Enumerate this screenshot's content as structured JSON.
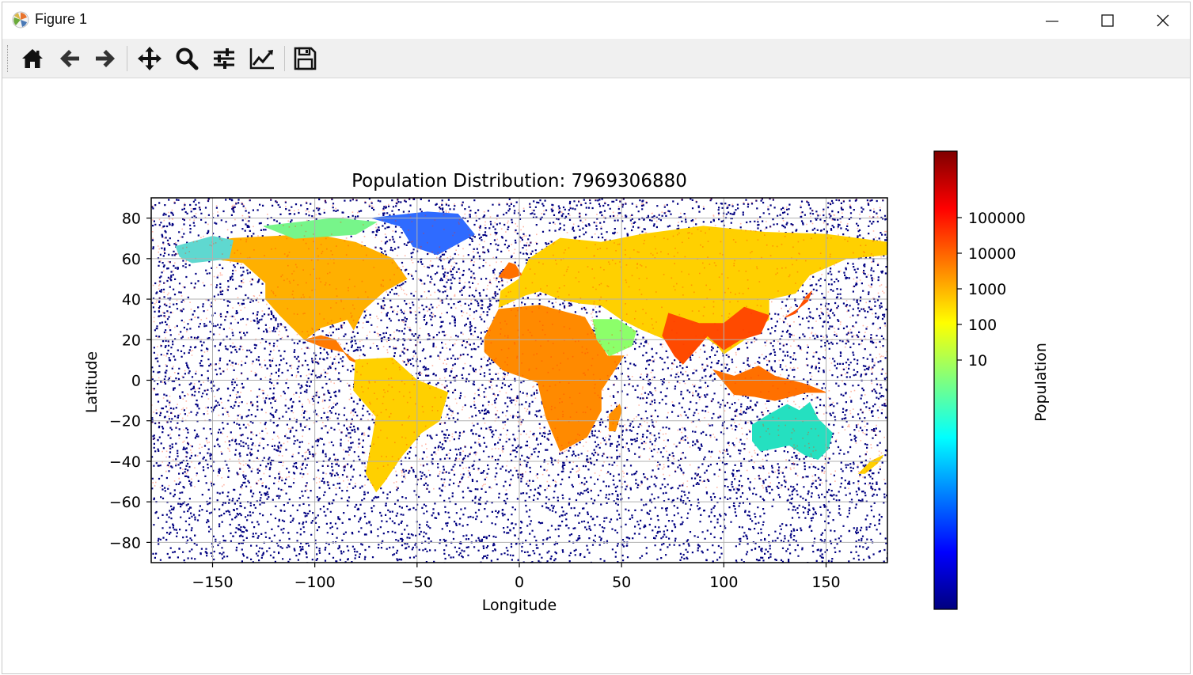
{
  "window": {
    "title": "Figure 1",
    "app_icon": "matplotlib-icon",
    "controls": [
      "minimize-icon",
      "maximize-icon",
      "close-icon"
    ]
  },
  "toolbar": {
    "buttons": [
      {
        "name": "home",
        "icon": "home-icon"
      },
      {
        "name": "back",
        "icon": "back-arrow-icon"
      },
      {
        "name": "forward",
        "icon": "forward-arrow-icon"
      },
      {
        "name": "pan",
        "icon": "move-icon"
      },
      {
        "name": "zoom",
        "icon": "zoom-icon"
      },
      {
        "name": "subplots",
        "icon": "sliders-icon"
      },
      {
        "name": "customize",
        "icon": "line-chart-icon"
      },
      {
        "name": "save",
        "icon": "save-icon"
      }
    ]
  },
  "chart_data": {
    "type": "heatmap",
    "title": "Population Distribution: 7969306880",
    "xlabel": "Longitude",
    "ylabel": "Latitude",
    "xlim": [
      -180,
      180
    ],
    "ylim": [
      -90,
      90
    ],
    "xticks": [
      -150,
      -100,
      -50,
      0,
      50,
      100,
      150
    ],
    "xtick_labels": [
      "−150",
      "−100",
      "−50",
      "0",
      "50",
      "100",
      "150"
    ],
    "yticks": [
      80,
      60,
      40,
      20,
      0,
      -20,
      -40,
      -60,
      -80
    ],
    "ytick_labels": [
      "80",
      "60",
      "40",
      "20",
      "0",
      "−20",
      "−40",
      "−60",
      "−80"
    ],
    "grid": true,
    "colormap": "jet",
    "colorbar": {
      "label": "Population",
      "scale": "log",
      "ticks": [
        100000,
        10000,
        1000,
        100,
        10
      ],
      "tick_labels": [
        "100000",
        "10000",
        "1000",
        "100",
        "10"
      ],
      "colors": [
        "#00007f",
        "#0000ff",
        "#007fff",
        "#00ffff",
        "#7fff7f",
        "#ffff00",
        "#ff7f00",
        "#ff0000",
        "#7f0000"
      ]
    },
    "ocean_color": "#000080"
  }
}
